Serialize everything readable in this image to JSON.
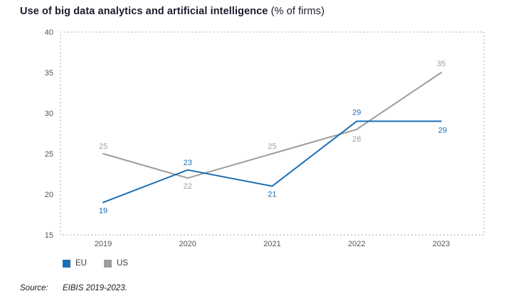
{
  "title": {
    "bold": "Use of big data analytics and artificial intelligence",
    "normal": " (% of firms)"
  },
  "chart_data": {
    "type": "line",
    "categories": [
      "2019",
      "2020",
      "2021",
      "2022",
      "2023"
    ],
    "series": [
      {
        "name": "EU",
        "color": "#1a6fb5",
        "values": [
          19,
          23,
          21,
          29,
          29
        ]
      },
      {
        "name": "US",
        "color": "#9d9d9d",
        "values": [
          25,
          22,
          25,
          28,
          35
        ]
      }
    ],
    "ylim": [
      15,
      40
    ],
    "yticks": [
      15,
      20,
      25,
      30,
      35,
      40
    ],
    "grid": false,
    "legend_position": "bottom-left",
    "title": "Use of big data analytics and artificial intelligence (% of firms)"
  },
  "source": {
    "label": "Source:",
    "text": "EIBIS 2019-2023."
  },
  "colors": {
    "plot_border": "#aaaaaa",
    "axis_text": "#555555",
    "title_text": "#1b1b2e"
  }
}
